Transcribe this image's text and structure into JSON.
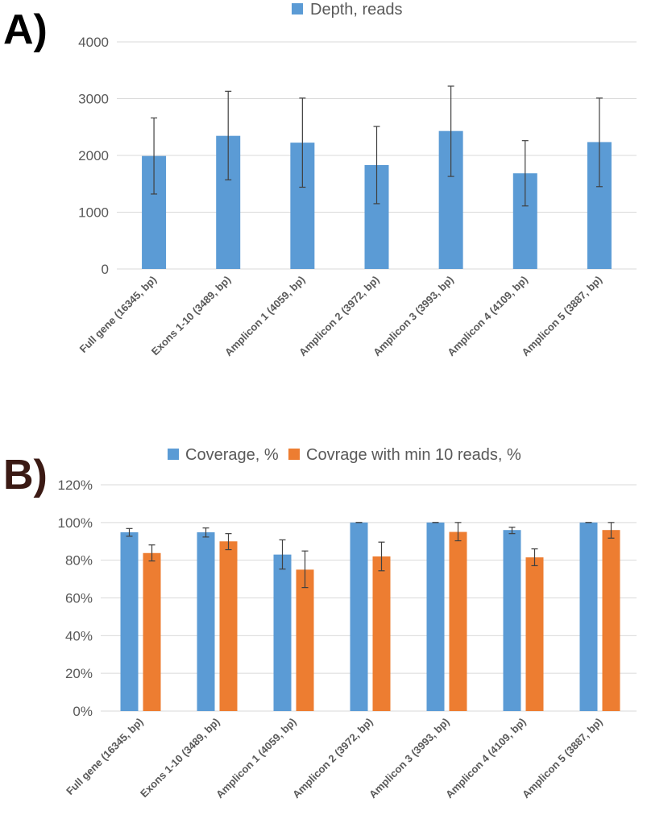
{
  "chart_data": [
    {
      "panel_label": "A)",
      "type": "bar",
      "title": "",
      "xlabel": "",
      "ylabel": "",
      "ylim": [
        0,
        4000
      ],
      "yticks": [
        0,
        1000,
        2000,
        3000,
        4000
      ],
      "ytick_labels": [
        "0",
        "1000",
        "2000",
        "3000",
        "4000"
      ],
      "grid": true,
      "legend_position": "top",
      "categories": [
        "Full gene (16345, bp)",
        "Exons 1-10 (3489, bp)",
        "Amplicon 1 (4059, bp)",
        "Amplicon 2 (3972, bp)",
        "Amplicon 3 (3993, bp)",
        "Amplicon 4 (4109, bp)",
        "Amplicon 5 (3887, bp)"
      ],
      "series": [
        {
          "name": "Depth, reads",
          "color": "#5b9bd5",
          "values": [
            1990,
            2345,
            2225,
            1830,
            2430,
            1685,
            2235
          ],
          "err_low": [
            1320,
            1570,
            1440,
            1150,
            1630,
            1110,
            1450
          ],
          "err_high": [
            2660,
            3130,
            3010,
            2510,
            3220,
            2260,
            3010
          ]
        }
      ]
    },
    {
      "panel_label": "B)",
      "type": "bar",
      "title": "",
      "xlabel": "",
      "ylabel": "",
      "ylim": [
        0,
        120
      ],
      "yticks": [
        0,
        20,
        40,
        60,
        80,
        100,
        120
      ],
      "ytick_labels": [
        "0%",
        "20%",
        "40%",
        "60%",
        "80%",
        "100%",
        "120%"
      ],
      "grid": true,
      "legend_position": "top",
      "categories": [
        "Full gene (16345, bp)",
        "Exons 1-10 (3489, bp)",
        "Amplicon 1 (4059, bp)",
        "Amplicon 2 (3972, bp)",
        "Amplicon 3 (3993, bp)",
        "Amplicon 4 (4109, bp)",
        "Amplicon 5 (3887, bp)"
      ],
      "series": [
        {
          "name": "Coverage, %",
          "color": "#5b9bd5",
          "values": [
            94.8,
            94.8,
            83,
            100,
            100,
            96,
            100
          ],
          "err_low": [
            92.7,
            92.3,
            75.3,
            100,
            100,
            94.1,
            100
          ],
          "err_high": [
            96.8,
            97.1,
            90.8,
            100,
            100,
            97.5,
            100
          ]
        },
        {
          "name": "Covrage with min 10 reads, %",
          "color": "#ed7d31",
          "values": [
            83.8,
            90,
            75,
            82,
            95,
            81.5,
            96
          ],
          "err_low": [
            79.6,
            85.6,
            65.5,
            74.4,
            90.3,
            77.1,
            91.7
          ],
          "err_high": [
            88.1,
            94.1,
            84.9,
            89.6,
            100,
            86,
            100
          ]
        }
      ]
    }
  ]
}
